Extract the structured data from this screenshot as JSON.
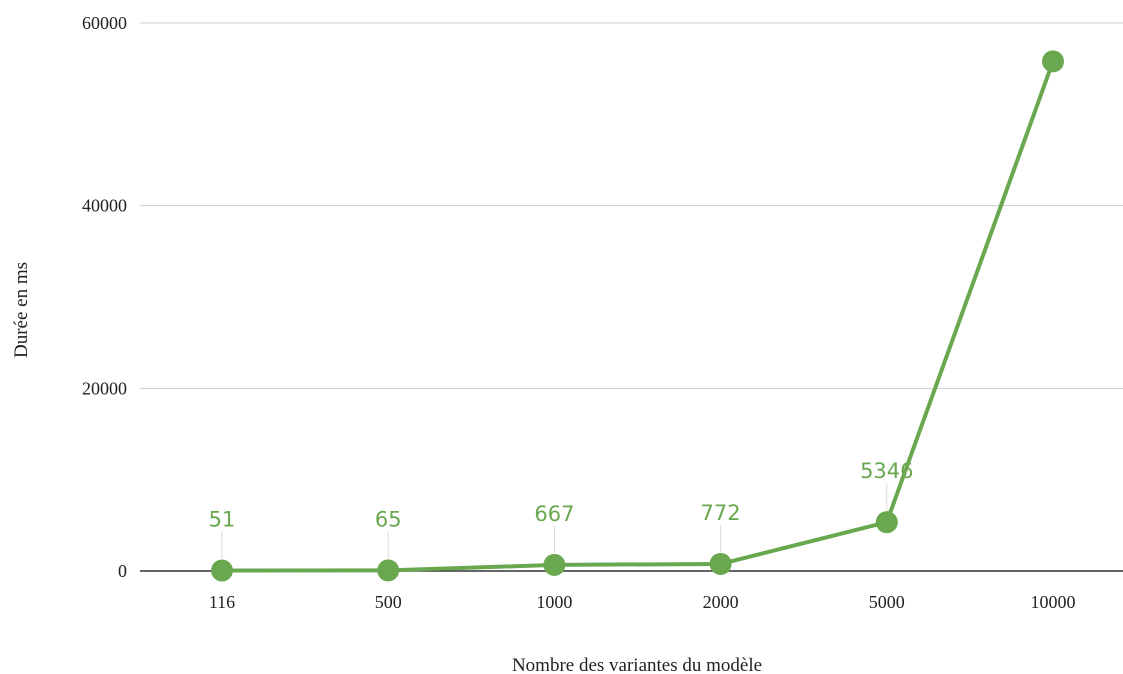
{
  "chart_data": {
    "type": "line",
    "categories": [
      "116",
      "500",
      "1000",
      "2000",
      "5000",
      "10000"
    ],
    "series": [
      {
        "values": [
          51,
          65,
          667,
          772,
          5346,
          55800
        ]
      }
    ],
    "data_labels": [
      "51",
      "65",
      "667",
      "772",
      "5346",
      ""
    ],
    "xlabel": "Nombre des variantes du modèle",
    "ylabel": "Durée en ms",
    "ylim": [
      0,
      60000
    ],
    "yticks": [
      0,
      20000,
      40000,
      60000
    ],
    "ytick_labels": [
      "0",
      "20000",
      "40000",
      "60000"
    ],
    "grid": true,
    "legend": "none",
    "colors": {
      "series": "#6aa84f",
      "grid": "#cccccc",
      "axis": "#333333"
    }
  }
}
